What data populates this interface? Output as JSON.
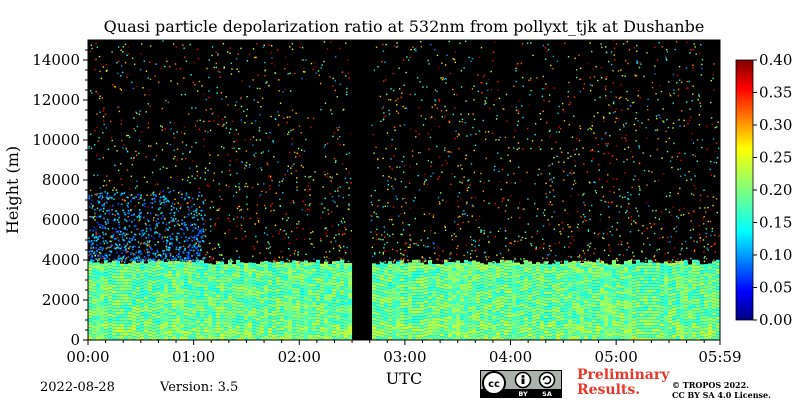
{
  "chart_data": {
    "type": "heatmap",
    "title": "Quasi particle depolarization ratio at 532nm from pollyxt_tjk at Dushanbe",
    "xlabel": "UTC",
    "ylabel": "Height (m)",
    "x_ticks": [
      "00:00",
      "01:00",
      "02:00",
      "03:00",
      "04:00",
      "05:00",
      "05:59"
    ],
    "x_tick_hours": [
      0,
      1,
      2,
      3,
      4,
      5,
      5.983
    ],
    "xlim_hours": [
      0,
      5.983
    ],
    "y_ticks": [
      0,
      2000,
      4000,
      6000,
      8000,
      10000,
      12000,
      14000
    ],
    "ylim": [
      0,
      15000
    ],
    "colorbar": {
      "ticks": [
        "0.00",
        "0.05",
        "0.10",
        "0.15",
        "0.20",
        "0.25",
        "0.30",
        "0.35",
        "0.40"
      ],
      "range": [
        0,
        0.4
      ],
      "colormap": "jet"
    },
    "features": {
      "aerosol_layer_top_m": 3900,
      "aerosol_layer_depol": 0.19,
      "near_surface_depol": 0.2,
      "data_gap_hours": [
        2.5,
        2.67
      ],
      "elevated_sparse_layer_m": [
        4000,
        7500
      ],
      "elevated_sparse_layer_hours": [
        0,
        1.1
      ],
      "elevated_sparse_layer_depol": 0.11
    }
  },
  "footer": {
    "date": "2022-08-28",
    "version": "Version: 3.5",
    "preliminary": [
      "Preliminary",
      "Results."
    ],
    "copyright": [
      "© TROPOS 2022.",
      "CC BY SA 4.0 License."
    ],
    "license_badge": [
      "cc",
      "BY",
      "SA"
    ]
  },
  "colors": {
    "background_no_data": "#000000",
    "title_text": "#000000",
    "preliminary_text": "#e8362d"
  }
}
